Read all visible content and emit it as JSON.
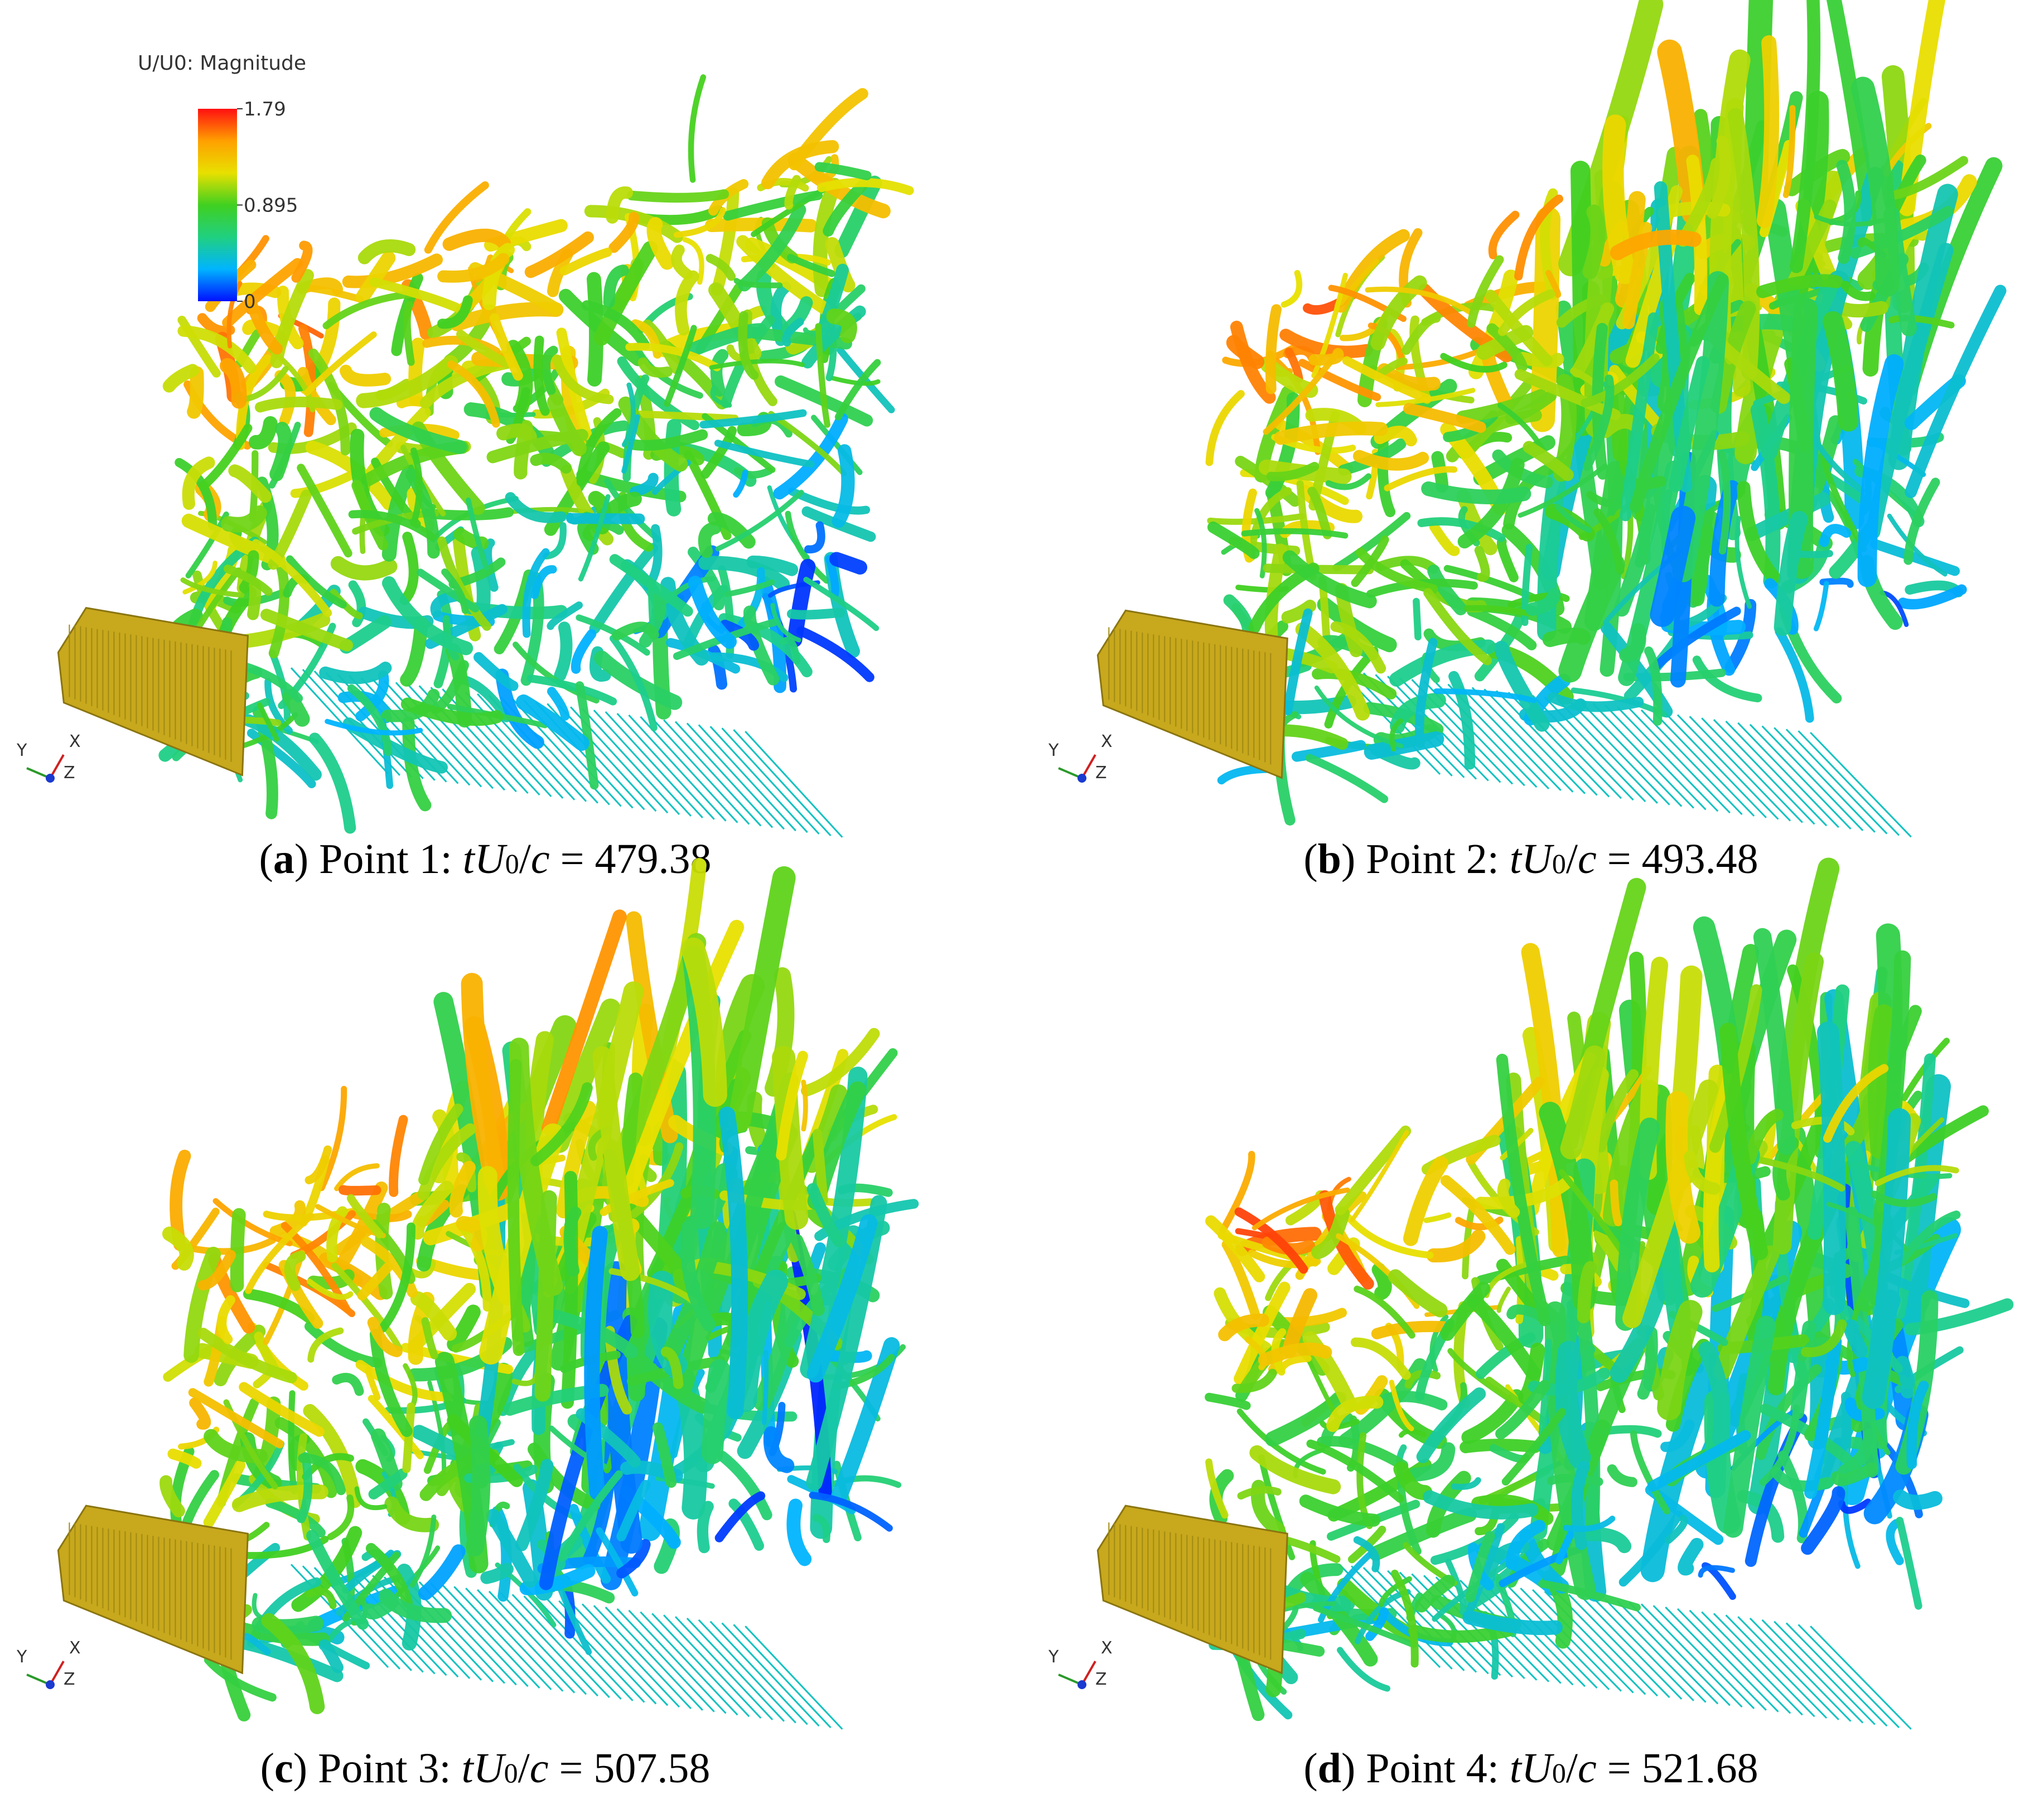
{
  "panels": [
    {
      "caption": [
        "(",
        "a",
        ") Point 1: ",
        "t",
        "U",
        "0",
        "/",
        "c",
        " = 479.38"
      ],
      "axes": [
        "Y",
        "X",
        "Z"
      ],
      "colorbar": {
        "title": "U/U0: Magnitude",
        "min": 0,
        "max": 1.79,
        "ticks": [
          0,
          0.895,
          1.79
        ],
        "colors": [
          "#0010ff",
          "#00b4ff",
          "#20d080",
          "#40d020",
          "#e8e000",
          "#ffa000",
          "#ff1010"
        ]
      }
    },
    {
      "caption": [
        "(",
        "b",
        ") Point 2: ",
        "t",
        "U",
        "0",
        "/",
        "c",
        " = 493.48"
      ],
      "axes": [
        "Y",
        "X",
        "Z"
      ]
    },
    {
      "caption": [
        "(",
        "c",
        ") Point 3: ",
        "t",
        "U",
        "0",
        "/",
        "c",
        " = 507.58"
      ],
      "axes": [
        "Y",
        "X",
        "Z"
      ]
    },
    {
      "caption": [
        "(",
        "d",
        ") Point 4: ",
        "t",
        "U",
        "0",
        "/",
        "c",
        " = 521.68"
      ],
      "axes": [
        "Y",
        "X",
        "Z"
      ]
    }
  ]
}
